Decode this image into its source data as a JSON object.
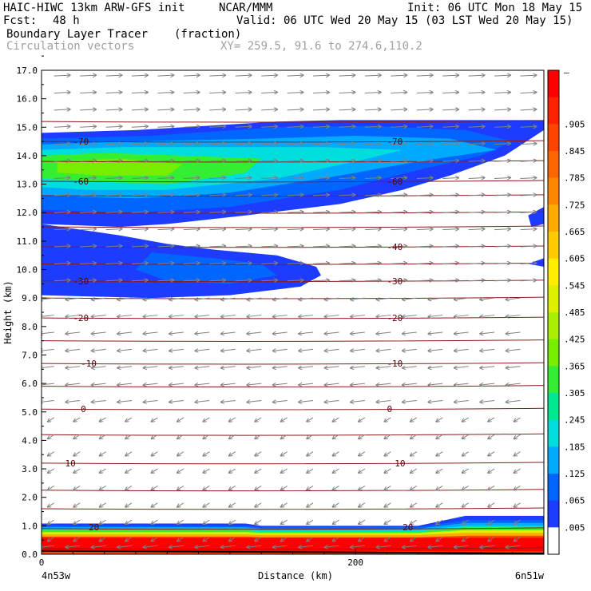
{
  "header": {
    "model": "HAIC-HIWC 13km ARW-GFS init",
    "org": "NCAR/MMM",
    "init": "Init: 06 UTC Mon 18 May 15",
    "fcst_label": "Fcst:",
    "fcst_value": "48 h",
    "valid": "Valid: 06 UTC Wed 20 May 15 (03 LST Wed 20 May 15)",
    "field": "Boundary Layer Tracer",
    "units": "(fraction)",
    "vectors": "Circulation vectors",
    "xy": "XY= 259.5, 91.6 to 274.6,110.2"
  },
  "chart_data": {
    "type": "heatmap",
    "ylabel": "Height (km)",
    "xlabel": "Distance (km)",
    "ylim": [
      0,
      17
    ],
    "xlim": [
      0,
      320
    ],
    "y_ticks": [
      "0.0",
      "1.0",
      "2.0",
      "3.0",
      "4.0",
      "5.0",
      "6.0",
      "7.0",
      "8.0",
      "9.0",
      "10.0",
      "11.0",
      "12.0",
      "13.0",
      "14.0",
      "15.0",
      "16.0",
      "17.0"
    ],
    "x_ticks": [
      {
        "value": 0,
        "label": "0"
      },
      {
        "value": 200,
        "label": "200"
      }
    ],
    "x_left_label": "4n53w",
    "x_right_label": "6n51w",
    "colorbar": {
      "labels": [
        "–",
        ".905",
        ".845",
        ".785",
        ".725",
        ".665",
        ".605",
        ".545",
        ".485",
        ".425",
        ".365",
        ".305",
        ".245",
        ".185",
        ".125",
        ".065",
        ".005"
      ],
      "colors": [
        "#ff0000",
        "#ff2200",
        "#ff4400",
        "#ff6600",
        "#ff8800",
        "#ffaa00",
        "#ffcc00",
        "#ffee00",
        "#ddf000",
        "#aaee00",
        "#77ee00",
        "#33ee33",
        "#00e890",
        "#00dddd",
        "#00aaff",
        "#0066ff",
        "#1e3cff",
        "#ffffff"
      ]
    },
    "temperature_contours": [
      {
        "label": "-70",
        "height": 14.5
      },
      {
        "label": "-60",
        "height": 13.1
      },
      {
        "label": "-40",
        "height": 10.8
      },
      {
        "label": "-30",
        "height": 9.6
      },
      {
        "label": "-20",
        "height": 8.3
      },
      {
        "label": "-10",
        "height": 6.7
      },
      {
        "label": "0",
        "height": 5.1
      },
      {
        "label": "10",
        "height": 3.2
      },
      {
        "label": "20",
        "height": 1.0
      }
    ],
    "isotherm_heights": [
      0.2,
      0.9,
      1.6,
      2.25,
      3.2,
      4.2,
      5.1,
      5.9,
      6.7,
      7.5,
      8.3,
      9.0,
      9.6,
      10.2,
      10.8,
      11.5,
      12.0,
      12.6,
      13.1,
      13.8,
      14.5,
      15.2
    ],
    "label_positions": [
      {
        "label": "-70",
        "x": 20,
        "y": 14.5
      },
      {
        "label": "-70",
        "x": 220,
        "y": 14.5
      },
      {
        "label": "-60",
        "x": 20,
        "y": 13.1
      },
      {
        "label": "-60",
        "x": 220,
        "y": 13.1
      },
      {
        "label": "-40",
        "x": 220,
        "y": 10.8
      },
      {
        "label": "-30",
        "x": 20,
        "y": 9.6
      },
      {
        "label": "-30",
        "x": 220,
        "y": 9.6
      },
      {
        "label": "-20",
        "x": 20,
        "y": 8.3
      },
      {
        "label": "-20",
        "x": 220,
        "y": 8.3
      },
      {
        "label": "-10",
        "x": 25,
        "y": 6.7
      },
      {
        "label": "-10",
        "x": 220,
        "y": 6.7
      },
      {
        "label": "0",
        "x": 25,
        "y": 5.1
      },
      {
        "label": "0",
        "x": 220,
        "y": 5.1
      },
      {
        "label": "10",
        "x": 15,
        "y": 3.2
      },
      {
        "label": "10",
        "x": 225,
        "y": 3.2
      },
      {
        "label": "20",
        "x": 30,
        "y": 0.95
      },
      {
        "label": "20",
        "x": 230,
        "y": 0.95
      }
    ],
    "tracer_regions": [
      {
        "name": "upper-outer",
        "color": "#1e3cff",
        "points": [
          [
            0,
            14.8
          ],
          [
            60,
            14.9
          ],
          [
            150,
            15.2
          ],
          [
            190,
            15.25
          ],
          [
            320,
            15.25
          ],
          [
            320,
            14.9
          ],
          [
            295,
            14.0
          ],
          [
            260,
            13.3
          ],
          [
            230,
            12.8
          ],
          [
            190,
            12.3
          ],
          [
            130,
            11.9
          ],
          [
            80,
            11.6
          ],
          [
            50,
            11.5
          ],
          [
            0,
            11.6
          ]
        ]
      },
      {
        "name": "mid-outer",
        "color": "#1e3cff",
        "points": [
          [
            0,
            11.6
          ],
          [
            50,
            11.2
          ],
          [
            80,
            10.9
          ],
          [
            110,
            10.7
          ],
          [
            150,
            10.5
          ],
          [
            175,
            10.1
          ],
          [
            178,
            9.8
          ],
          [
            165,
            9.4
          ],
          [
            120,
            9.1
          ],
          [
            70,
            9.0
          ],
          [
            0,
            9.1
          ]
        ]
      },
      {
        "name": "upper-mid",
        "color": "#0066ff",
        "points": [
          [
            0,
            14.6
          ],
          [
            70,
            14.7
          ],
          [
            150,
            15.0
          ],
          [
            210,
            15.05
          ],
          [
            270,
            14.9
          ],
          [
            300,
            14.5
          ],
          [
            280,
            14.0
          ],
          [
            240,
            13.5
          ],
          [
            190,
            12.8
          ],
          [
            120,
            12.2
          ],
          [
            60,
            12.0
          ],
          [
            0,
            12.1
          ]
        ]
      },
      {
        "name": "mid-inner",
        "color": "#0066ff",
        "points": [
          [
            70,
            10.6
          ],
          [
            110,
            10.4
          ],
          [
            140,
            10.2
          ],
          [
            150,
            9.8
          ],
          [
            120,
            9.5
          ],
          [
            80,
            9.6
          ],
          [
            60,
            10.0
          ]
        ]
      },
      {
        "name": "upper-cyan",
        "color": "#00aaff",
        "points": [
          [
            0,
            14.4
          ],
          [
            60,
            14.5
          ],
          [
            140,
            14.6
          ],
          [
            200,
            14.7
          ],
          [
            260,
            14.6
          ],
          [
            290,
            14.2
          ],
          [
            240,
            13.8
          ],
          [
            190,
            13.3
          ],
          [
            120,
            12.7
          ],
          [
            60,
            12.5
          ],
          [
            0,
            12.6
          ]
        ]
      },
      {
        "name": "upper-teal",
        "color": "#00dddd",
        "points": [
          [
            0,
            14.2
          ],
          [
            50,
            14.3
          ],
          [
            110,
            14.3
          ],
          [
            180,
            14.3
          ],
          [
            230,
            14.2
          ],
          [
            200,
            13.8
          ],
          [
            150,
            13.2
          ],
          [
            80,
            12.8
          ],
          [
            30,
            12.8
          ],
          [
            0,
            12.9
          ]
        ]
      },
      {
        "name": "upper-green",
        "color": "#33ee33",
        "points": [
          [
            0,
            14.0
          ],
          [
            40,
            14.1
          ],
          [
            90,
            14.0
          ],
          [
            140,
            13.9
          ],
          [
            130,
            13.4
          ],
          [
            80,
            13.0
          ],
          [
            30,
            13.1
          ],
          [
            0,
            13.2
          ]
        ]
      },
      {
        "name": "upper-lime",
        "color": "#77ee00",
        "points": [
          [
            10,
            13.8
          ],
          [
            50,
            13.9
          ],
          [
            90,
            13.7
          ],
          [
            80,
            13.3
          ],
          [
            40,
            13.3
          ],
          [
            10,
            13.4
          ]
        ]
      }
    ],
    "bl_bands": [
      {
        "color": "#1e3cff",
        "top_left": 1.08,
        "top_mid": 1.0,
        "top_right": 1.35
      },
      {
        "color": "#0066ff",
        "top_left": 1.0,
        "top_mid": 0.95,
        "top_right": 1.2
      },
      {
        "color": "#00aaff",
        "top_left": 0.95,
        "top_mid": 0.9,
        "top_right": 1.1
      },
      {
        "color": "#00dddd",
        "top_left": 0.9,
        "top_mid": 0.85,
        "top_right": 1.0
      },
      {
        "color": "#33ee33",
        "top_left": 0.85,
        "top_mid": 0.8,
        "top_right": 0.95
      },
      {
        "color": "#ddf000",
        "top_left": 0.78,
        "top_mid": 0.75,
        "top_right": 0.85
      },
      {
        "color": "#ffaa00",
        "top_left": 0.7,
        "top_mid": 0.68,
        "top_right": 0.75
      },
      {
        "color": "#ff4400",
        "top_left": 0.62,
        "top_mid": 0.6,
        "top_right": 0.65
      }
    ],
    "side_blobs": [
      {
        "color": "#1e3cff",
        "points": [
          [
            310,
            11.9
          ],
          [
            320,
            12.2
          ],
          [
            320,
            11.6
          ],
          [
            312,
            11.5
          ]
        ]
      },
      {
        "color": "#1e3cff",
        "points": [
          [
            310,
            10.2
          ],
          [
            320,
            10.4
          ],
          [
            320,
            10.1
          ]
        ]
      }
    ],
    "wind_vector_rows": [
      {
        "height": 16.8,
        "direction": "right"
      },
      {
        "height": 16.2,
        "direction": "right"
      },
      {
        "height": 15.6,
        "direction": "right"
      },
      {
        "height": 15.0,
        "direction": "right"
      },
      {
        "height": 14.4,
        "direction": "right"
      },
      {
        "height": 13.8,
        "direction": "right"
      },
      {
        "height": 13.2,
        "direction": "right"
      },
      {
        "height": 12.6,
        "direction": "right"
      },
      {
        "height": 12.0,
        "direction": "right"
      },
      {
        "height": 11.4,
        "direction": "right"
      },
      {
        "height": 10.8,
        "direction": "right"
      },
      {
        "height": 10.2,
        "direction": "right"
      },
      {
        "height": 9.6,
        "direction": "right"
      },
      {
        "height": 9.0,
        "direction": "left"
      },
      {
        "height": 8.4,
        "direction": "left"
      },
      {
        "height": 7.8,
        "direction": "left"
      },
      {
        "height": 7.2,
        "direction": "left"
      },
      {
        "height": 6.6,
        "direction": "left"
      },
      {
        "height": 6.0,
        "direction": "left"
      },
      {
        "height": 5.4,
        "direction": "left"
      },
      {
        "height": 4.8,
        "direction": "down"
      },
      {
        "height": 4.2,
        "direction": "down"
      },
      {
        "height": 3.6,
        "direction": "down"
      },
      {
        "height": 3.0,
        "direction": "down"
      },
      {
        "height": 2.4,
        "direction": "down"
      },
      {
        "height": 1.8,
        "direction": "down"
      },
      {
        "height": 1.2,
        "direction": "down"
      },
      {
        "height": 0.6,
        "direction": "down"
      },
      {
        "height": 0.3,
        "direction": "left"
      }
    ]
  }
}
